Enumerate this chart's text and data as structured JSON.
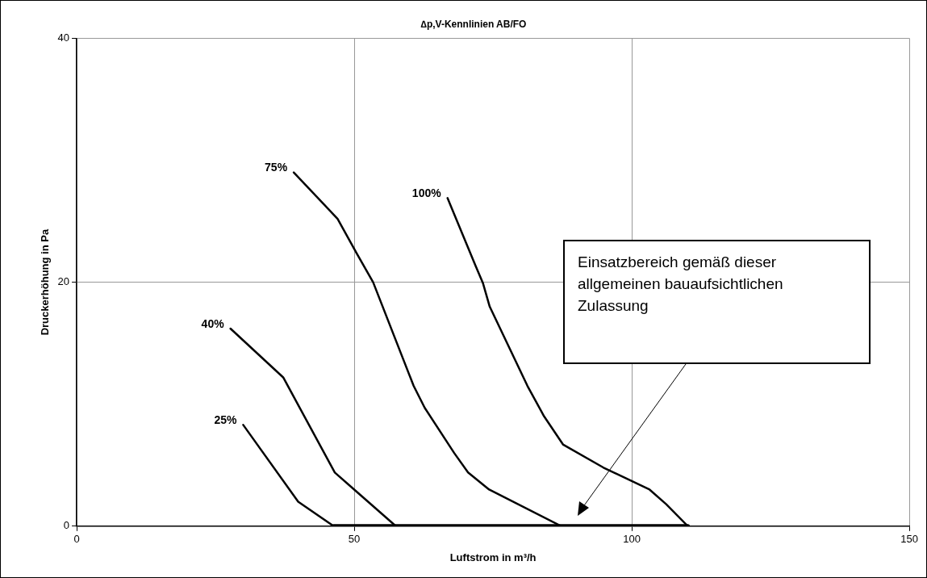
{
  "chart_data": {
    "type": "line",
    "title": "∆p,V-Kennlinien AB/FO",
    "xlabel": "Luftstrom in m³/h",
    "ylabel": "Druckerhöhung in Pa",
    "xlim": [
      0,
      150
    ],
    "xticks": [
      0,
      50,
      100,
      150
    ],
    "ylim": [
      0,
      40
    ],
    "yticks": [
      0,
      20,
      40
    ],
    "grid": true,
    "legend": false,
    "marker": "none",
    "line_style": "solid",
    "series": [
      {
        "name": "25%",
        "color": "#000000",
        "x": [
          30.0,
          39.9,
          46.3
        ],
        "values": [
          8.3,
          2.0,
          0
        ]
      },
      {
        "name": "40%",
        "color": "#000000",
        "x": [
          27.7,
          37.2,
          46.5,
          50.0,
          57.5
        ],
        "values": [
          16.2,
          12.2,
          4.4,
          3.0,
          0
        ]
      },
      {
        "name": "75%",
        "color": "#000000",
        "x": [
          39.1,
          47.0,
          50.4,
          53.4,
          60.7,
          62.7,
          68.0,
          70.5,
          74.3,
          87.3
        ],
        "values": [
          29.0,
          25.2,
          22.4,
          20.0,
          11.5,
          9.7,
          6.0,
          4.4,
          3.0,
          0
        ]
      },
      {
        "name": "100%",
        "color": "#000000",
        "x": [
          66.8,
          71.9,
          73.2,
          74.4,
          81.2,
          84.2,
          87.6,
          94.9,
          103.2,
          106.2,
          110.1
        ],
        "values": [
          26.9,
          21.3,
          19.9,
          18.0,
          11.5,
          9.0,
          6.7,
          4.8,
          3.0,
          1.8,
          0
        ]
      },
      {
        "color": "#000000",
        "x": [
          46.3,
          110.1
        ],
        "values": [
          0,
          0
        ]
      }
    ],
    "annotations": [
      "Einsatzbereich gemäß dieser allgemeinen bauaufsichtlichen Zulassung"
    ]
  }
}
